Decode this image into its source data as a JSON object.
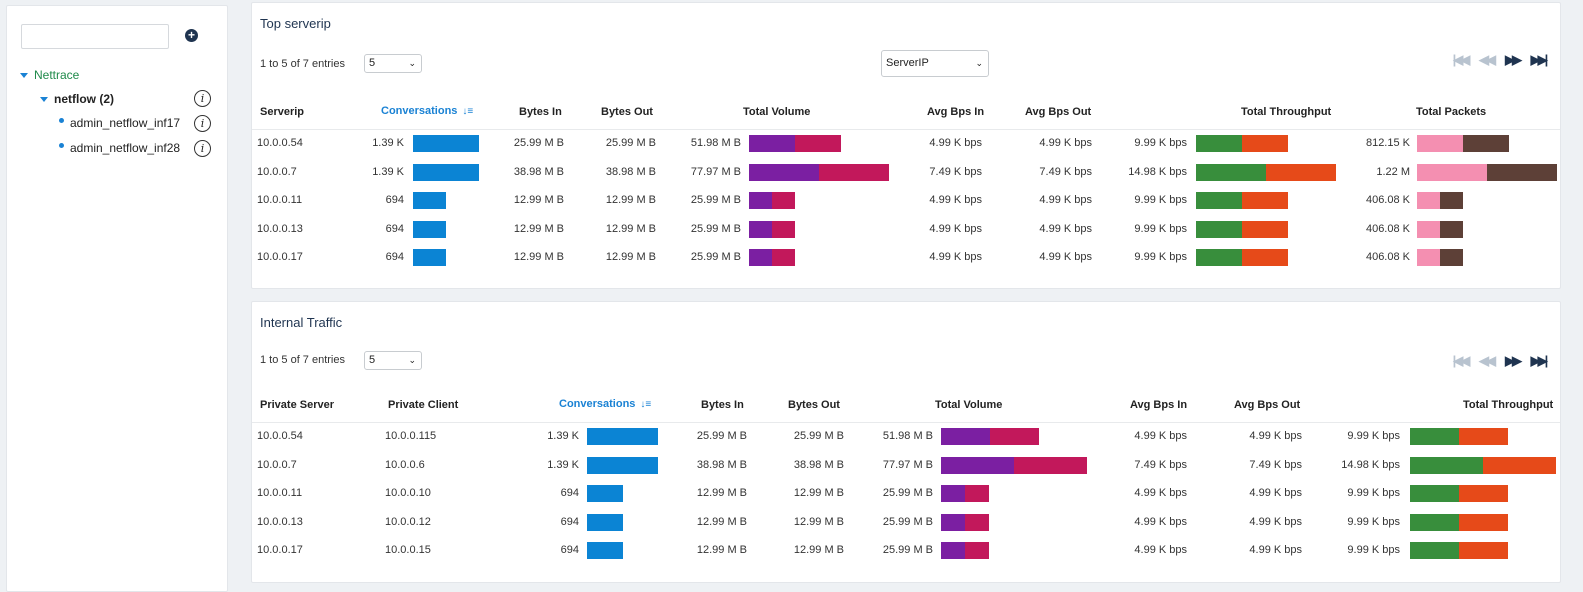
{
  "sidebar": {
    "search_placeholder": "",
    "root_label": "Nettrace",
    "node_label": "netflow (2)",
    "leaves": [
      "admin_netflow_inf17",
      "admin_netflow_inf28"
    ],
    "info_glyph": "i"
  },
  "colors": {
    "conversations": "#0b84d4",
    "volume_in": "#7b1fa2",
    "volume_out": "#c2185b",
    "throughput_in": "#388e3c",
    "throughput_out": "#e64a19",
    "packets_in": "#f48fb1",
    "packets_out": "#5d4037"
  },
  "pager_icons": [
    "first-page-icon",
    "prev-page-icon",
    "next-page-icon",
    "last-page-icon"
  ],
  "pager_glyphs": [
    "|◀◀",
    "◀◀",
    "▶▶",
    "▶▶|"
  ],
  "sort_glyph": "↓≡",
  "chevron_glyph": "⌄",
  "top_serverip": {
    "title": "Top serverip",
    "entries_text": "1 to 5 of 7 entries",
    "page_size": "5",
    "group_select": "ServerIP",
    "headers": {
      "serverip": "Serverip",
      "conversations": "Conversations",
      "bytes_in": "Bytes In",
      "bytes_out": "Bytes Out",
      "total_volume": "Total Volume",
      "avg_in": "Avg Bps In",
      "avg_out": "Avg Bps Out",
      "total_throughput": "Total Throughput",
      "total_packets": "Total Packets"
    },
    "rows": [
      {
        "ip": "10.0.0.54",
        "conv": "1.39 K",
        "conv_frac": 1.0,
        "bytes_in": "25.99 M B",
        "bytes_out": "25.99 M B",
        "vol": "51.98 M B",
        "vol_in_frac": 0.333,
        "vol_out_frac": 0.333,
        "avg_in": "4.99 K bps",
        "avg_out": "4.99 K bps",
        "thr": "9.99 K bps",
        "thr_in_frac": 0.333,
        "thr_out_frac": 0.333,
        "pkts": "812.15 K",
        "pkt_in_frac": 0.333,
        "pkt_out_frac": 0.333
      },
      {
        "ip": "10.0.0.7",
        "conv": "1.39 K",
        "conv_frac": 1.0,
        "bytes_in": "38.98 M B",
        "bytes_out": "38.98 M B",
        "vol": "77.97 M B",
        "vol_in_frac": 0.5,
        "vol_out_frac": 0.5,
        "avg_in": "7.49 K bps",
        "avg_out": "7.49 K bps",
        "thr": "14.98 K bps",
        "thr_in_frac": 0.5,
        "thr_out_frac": 0.5,
        "pkts": "1.22 M",
        "pkt_in_frac": 0.5,
        "pkt_out_frac": 0.5
      },
      {
        "ip": "10.0.0.11",
        "conv": "694",
        "conv_frac": 0.5,
        "bytes_in": "12.99 M B",
        "bytes_out": "12.99 M B",
        "vol": "25.99 M B",
        "vol_in_frac": 0.167,
        "vol_out_frac": 0.167,
        "avg_in": "4.99 K bps",
        "avg_out": "4.99 K bps",
        "thr": "9.99 K bps",
        "thr_in_frac": 0.333,
        "thr_out_frac": 0.333,
        "pkts": "406.08 K",
        "pkt_in_frac": 0.167,
        "pkt_out_frac": 0.167
      },
      {
        "ip": "10.0.0.13",
        "conv": "694",
        "conv_frac": 0.5,
        "bytes_in": "12.99 M B",
        "bytes_out": "12.99 M B",
        "vol": "25.99 M B",
        "vol_in_frac": 0.167,
        "vol_out_frac": 0.167,
        "avg_in": "4.99 K bps",
        "avg_out": "4.99 K bps",
        "thr": "9.99 K bps",
        "thr_in_frac": 0.333,
        "thr_out_frac": 0.333,
        "pkts": "406.08 K",
        "pkt_in_frac": 0.167,
        "pkt_out_frac": 0.167
      },
      {
        "ip": "10.0.0.17",
        "conv": "694",
        "conv_frac": 0.5,
        "bytes_in": "12.99 M B",
        "bytes_out": "12.99 M B",
        "vol": "25.99 M B",
        "vol_in_frac": 0.167,
        "vol_out_frac": 0.167,
        "avg_in": "4.99 K bps",
        "avg_out": "4.99 K bps",
        "thr": "9.99 K bps",
        "thr_in_frac": 0.333,
        "thr_out_frac": 0.333,
        "pkts": "406.08 K",
        "pkt_in_frac": 0.167,
        "pkt_out_frac": 0.167
      }
    ]
  },
  "internal_traffic": {
    "title": "Internal Traffic",
    "entries_text": "1 to 5 of 7 entries",
    "page_size": "5",
    "headers": {
      "private_server": "Private Server",
      "private_client": "Private Client",
      "conversations": "Conversations",
      "bytes_in": "Bytes In",
      "bytes_out": "Bytes Out",
      "total_volume": "Total Volume",
      "avg_in": "Avg Bps In",
      "avg_out": "Avg Bps Out",
      "total_throughput": "Total Throughput"
    },
    "rows": [
      {
        "server": "10.0.0.54",
        "client": "10.0.0.115",
        "conv": "1.39 K",
        "conv_frac": 1.0,
        "bytes_in": "25.99 M B",
        "bytes_out": "25.99 M B",
        "vol": "51.98 M B",
        "vol_in_frac": 0.333,
        "vol_out_frac": 0.333,
        "avg_in": "4.99 K bps",
        "avg_out": "4.99 K bps",
        "thr": "9.99 K bps",
        "thr_in_frac": 0.333,
        "thr_out_frac": 0.333
      },
      {
        "server": "10.0.0.7",
        "client": "10.0.0.6",
        "conv": "1.39 K",
        "conv_frac": 1.0,
        "bytes_in": "38.98 M B",
        "bytes_out": "38.98 M B",
        "vol": "77.97 M B",
        "vol_in_frac": 0.5,
        "vol_out_frac": 0.5,
        "avg_in": "7.49 K bps",
        "avg_out": "7.49 K bps",
        "thr": "14.98 K bps",
        "thr_in_frac": 0.5,
        "thr_out_frac": 0.5
      },
      {
        "server": "10.0.0.11",
        "client": "10.0.0.10",
        "conv": "694",
        "conv_frac": 0.5,
        "bytes_in": "12.99 M B",
        "bytes_out": "12.99 M B",
        "vol": "25.99 M B",
        "vol_in_frac": 0.167,
        "vol_out_frac": 0.167,
        "avg_in": "4.99 K bps",
        "avg_out": "4.99 K bps",
        "thr": "9.99 K bps",
        "thr_in_frac": 0.333,
        "thr_out_frac": 0.333
      },
      {
        "server": "10.0.0.13",
        "client": "10.0.0.12",
        "conv": "694",
        "conv_frac": 0.5,
        "bytes_in": "12.99 M B",
        "bytes_out": "12.99 M B",
        "vol": "25.99 M B",
        "vol_in_frac": 0.167,
        "vol_out_frac": 0.167,
        "avg_in": "4.99 K bps",
        "avg_out": "4.99 K bps",
        "thr": "9.99 K bps",
        "thr_in_frac": 0.333,
        "thr_out_frac": 0.333
      },
      {
        "server": "10.0.0.17",
        "client": "10.0.0.15",
        "conv": "694",
        "conv_frac": 0.5,
        "bytes_in": "12.99 M B",
        "bytes_out": "12.99 M B",
        "vol": "25.99 M B",
        "vol_in_frac": 0.167,
        "vol_out_frac": 0.167,
        "avg_in": "4.99 K bps",
        "avg_out": "4.99 K bps",
        "thr": "9.99 K bps",
        "thr_in_frac": 0.333,
        "thr_out_frac": 0.333
      }
    ]
  }
}
